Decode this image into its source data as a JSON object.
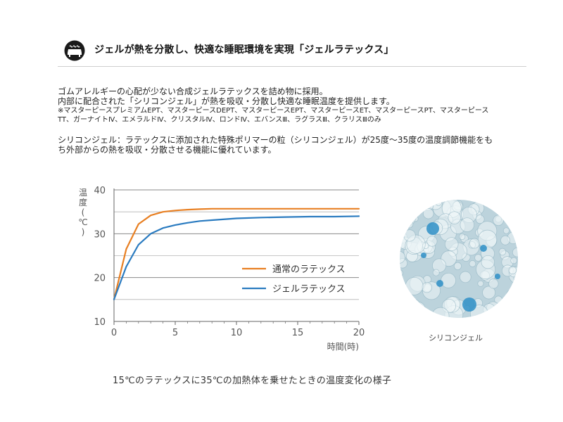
{
  "header": {
    "icon": "mattress-icon",
    "title": "ジェルが熱を分散し、快適な睡眠環境を実現「ジェルラテックス」"
  },
  "intro": {
    "line1": "ゴムアレルギーの心配が少ない合成ジェルラテックスを詰め物に採用。",
    "line2": "内部に配合された「シリコンジェル」が熱を吸収・分散し快適な睡眠温度を提供します。",
    "note_line1": "※マスターピースプレミアムEPT、マスターピースDEPT、マスターピースEPT、マスターピースET、マスターピースPT、マスターピース",
    "note_line2": "TT、ガーナイトⅣ、エメラルドⅣ、クリスタルⅣ、ロンドⅣ、エバンスⅢ、ラグラスⅢ、クラリスⅢのみ"
  },
  "silicon_desc": {
    "line1": "シリコンジェル：ラテックスに添加された特殊ポリマーの粒（シリコンジェル）が25度～35度の温度調節機能をも",
    "line2": "ち外部からの熱を吸収・分散させる機能に優れています。"
  },
  "chart_data": {
    "type": "line",
    "ylabel_chars": [
      "温",
      "度",
      "(",
      "℃",
      ")"
    ],
    "xlabel": "時間(時)",
    "xlim": [
      0,
      20
    ],
    "ylim": [
      10,
      40
    ],
    "xticks": [
      0,
      5,
      10,
      15,
      20
    ],
    "yticks": [
      10,
      20,
      30,
      40
    ],
    "grid": true,
    "legend_position": "center-right",
    "series": [
      {
        "name": "通常のラテックス",
        "color": "#e87f22",
        "x": [
          0,
          1,
          2,
          3,
          4,
          5,
          6,
          7,
          8,
          10,
          12,
          14,
          16,
          18,
          20
        ],
        "y": [
          15,
          26.5,
          32.2,
          34.2,
          35.0,
          35.3,
          35.5,
          35.6,
          35.7,
          35.7,
          35.7,
          35.7,
          35.7,
          35.7,
          35.7
        ]
      },
      {
        "name": "ジェルラテックス",
        "color": "#2a7bc0",
        "x": [
          0,
          1,
          2,
          3,
          4,
          5,
          6,
          7,
          8,
          10,
          12,
          14,
          16,
          18,
          20
        ],
        "y": [
          15,
          22.5,
          27.5,
          30.0,
          31.3,
          32.0,
          32.5,
          32.9,
          33.1,
          33.5,
          33.7,
          33.8,
          33.9,
          33.9,
          34.0
        ]
      }
    ]
  },
  "caption": "15℃のラテックスに35℃の加熱体を乗せたときの温度変化の様子",
  "photo": {
    "label": "シリコンジェル",
    "colors": {
      "base": "#bcd3dc",
      "foam": "#eef5f8",
      "blue": "#2f8fc7"
    }
  }
}
